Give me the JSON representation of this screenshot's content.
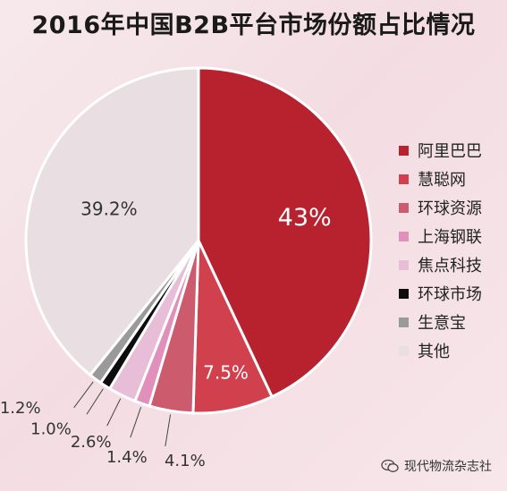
{
  "chart_data": {
    "type": "pie",
    "title": "2016年中国B2B平台市场份额占比情况",
    "slices": [
      {
        "name": "阿里巴巴",
        "value": 43,
        "label": "43%",
        "color": "#b8222f"
      },
      {
        "name": "慧聪网",
        "value": 7.5,
        "label": "7.5%",
        "color": "#d1404d"
      },
      {
        "name": "环球资源",
        "value": 4.1,
        "label": "4.1%",
        "color": "#cc5b6e"
      },
      {
        "name": "上海钢联",
        "value": 1.4,
        "label": "1.4%",
        "color": "#e090ba"
      },
      {
        "name": "焦点科技",
        "value": 2.6,
        "label": "2.6%",
        "color": "#e7bdd7"
      },
      {
        "name": "环球市场",
        "value": 1.0,
        "label": "1.0%",
        "color": "#0d0d0d"
      },
      {
        "name": "生意宝",
        "value": 1.2,
        "label": "1.2%",
        "color": "#9a9a9a"
      },
      {
        "name": "其他",
        "value": 39.2,
        "label": "39.2%",
        "color": "#e9dfe2"
      }
    ],
    "legend_position": "right"
  },
  "watermark": {
    "text": "现代物流杂志社",
    "icon": "wechat-icon"
  }
}
